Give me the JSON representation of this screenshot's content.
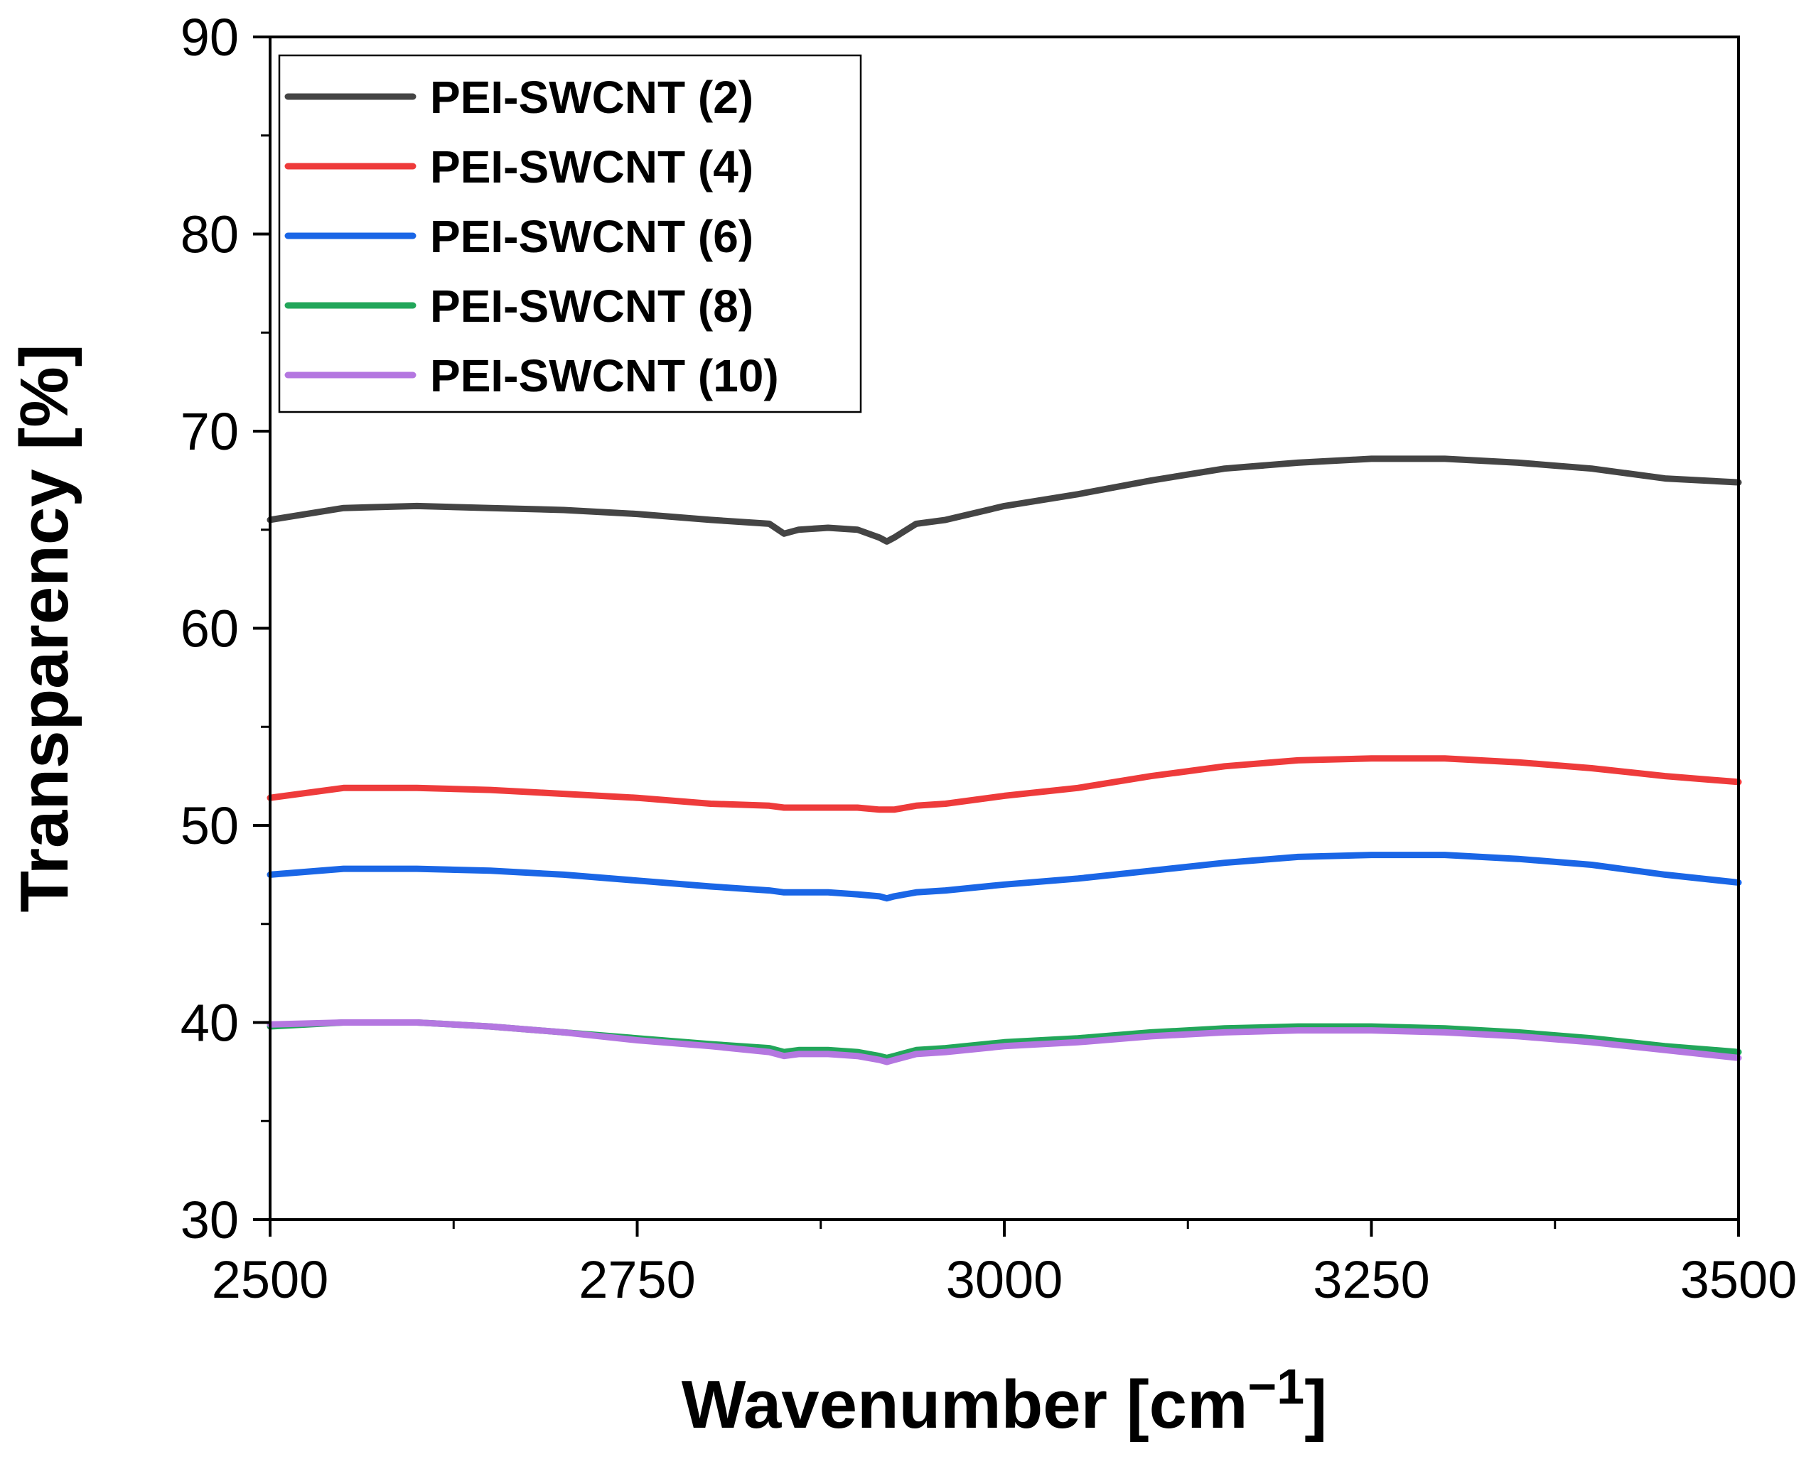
{
  "chart_data": {
    "type": "line",
    "title": "",
    "xlabel": "Wavenumber [cm",
    "xlabel_sup": "−1",
    "xlabel_end": "]",
    "ylabel": "Transparency [%]",
    "xlim": [
      2500,
      3500
    ],
    "ylim": [
      30,
      90
    ],
    "xticks": [
      2500,
      2750,
      3000,
      3250,
      3500
    ],
    "yticks": [
      30,
      40,
      50,
      60,
      70,
      80,
      90
    ],
    "xticks_minor": [
      2625,
      2875,
      3125,
      3375
    ],
    "yticks_minor": [
      35,
      45,
      55,
      65,
      75,
      85
    ],
    "grid": false,
    "legend_position": "top-left",
    "x": [
      2500,
      2550,
      2600,
      2650,
      2700,
      2750,
      2800,
      2840,
      2850,
      2860,
      2880,
      2900,
      2915,
      2920,
      2925,
      2940,
      2960,
      3000,
      3050,
      3100,
      3150,
      3200,
      3250,
      3300,
      3350,
      3400,
      3450,
      3500
    ],
    "series": [
      {
        "name": "PEI-SWCNT (2)",
        "color": "#444444",
        "values": [
          65.5,
          66.1,
          66.2,
          66.1,
          66.0,
          65.8,
          65.5,
          65.3,
          64.8,
          65.0,
          65.1,
          65.0,
          64.6,
          64.4,
          64.6,
          65.3,
          65.5,
          66.2,
          66.8,
          67.5,
          68.1,
          68.4,
          68.6,
          68.6,
          68.4,
          68.1,
          67.6,
          67.4
        ]
      },
      {
        "name": "PEI-SWCNT (4)",
        "color": "#ee3b3b",
        "values": [
          51.4,
          51.9,
          51.9,
          51.8,
          51.6,
          51.4,
          51.1,
          51.0,
          50.9,
          50.9,
          50.9,
          50.9,
          50.8,
          50.8,
          50.8,
          51.0,
          51.1,
          51.5,
          51.9,
          52.5,
          53.0,
          53.3,
          53.4,
          53.4,
          53.2,
          52.9,
          52.5,
          52.2
        ]
      },
      {
        "name": "PEI-SWCNT (6)",
        "color": "#1a66e6",
        "values": [
          47.5,
          47.8,
          47.8,
          47.7,
          47.5,
          47.2,
          46.9,
          46.7,
          46.6,
          46.6,
          46.6,
          46.5,
          46.4,
          46.3,
          46.4,
          46.6,
          46.7,
          47.0,
          47.3,
          47.7,
          48.1,
          48.4,
          48.5,
          48.5,
          48.3,
          48.0,
          47.5,
          47.1
        ]
      },
      {
        "name": "PEI-SWCNT (8)",
        "color": "#22a65a",
        "values": [
          39.8,
          40.0,
          40.0,
          39.8,
          39.5,
          39.2,
          38.9,
          38.7,
          38.5,
          38.6,
          38.6,
          38.5,
          38.3,
          38.2,
          38.3,
          38.6,
          38.7,
          39.0,
          39.2,
          39.5,
          39.7,
          39.8,
          39.8,
          39.7,
          39.5,
          39.2,
          38.8,
          38.5
        ]
      },
      {
        "name": "PEI-SWCNT (10)",
        "color": "#b477e0",
        "values": [
          39.9,
          40.0,
          40.0,
          39.8,
          39.5,
          39.1,
          38.8,
          38.5,
          38.3,
          38.4,
          38.4,
          38.3,
          38.1,
          38.0,
          38.1,
          38.4,
          38.5,
          38.8,
          39.0,
          39.3,
          39.5,
          39.6,
          39.6,
          39.5,
          39.3,
          39.0,
          38.6,
          38.2
        ]
      }
    ]
  }
}
